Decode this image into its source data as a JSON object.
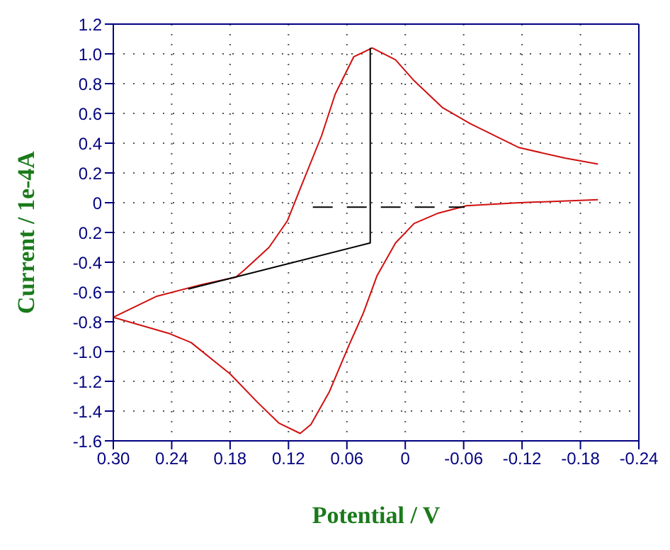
{
  "chart_data": {
    "type": "line",
    "xlabel": "Potential / V",
    "ylabel": "Current / 1e-4A",
    "xlim": [
      0.3,
      -0.24
    ],
    "xticks": [
      {
        "value": 0.3,
        "label": "0.30"
      },
      0.24,
      0.18,
      0.12,
      0.06,
      0,
      -0.06,
      -0.12,
      -0.18,
      -0.24
    ],
    "ylim": [
      -1.6,
      1.2
    ],
    "yticks": [
      -1.6,
      -1.4,
      -1.2,
      {
        "value": -1,
        "label": "-1.0"
      },
      -0.8,
      -0.6,
      -0.4,
      {
        "value": -0.2,
        "label": "0.2"
      },
      0,
      0.2,
      0.4,
      0.6,
      0.8,
      {
        "value": 1,
        "label": "1.0"
      },
      1.2
    ],
    "grid": true,
    "legend": false,
    "marker": "none",
    "series": [
      {
        "color": "#d01010",
        "line_style": "solid",
        "x": [
          0.3,
          0.242,
          0.22,
          0.18,
          0.152,
          0.13,
          0.108,
          0.097,
          0.078,
          0.058,
          0.043,
          0.029,
          0.01,
          -0.009,
          -0.034,
          -0.063,
          -0.117,
          -0.198
        ],
        "values": [
          -0.77,
          -0.88,
          -0.94,
          -1.15,
          -1.34,
          -1.48,
          -1.55,
          -1.49,
          -1.27,
          -0.96,
          -0.74,
          -0.49,
          -0.27,
          -0.14,
          -0.07,
          -0.02,
          0.0,
          0.02
        ]
      },
      {
        "color": "#d01010",
        "line_style": "solid",
        "x": [
          -0.198,
          -0.164,
          -0.117,
          -0.067,
          -0.038,
          -0.009,
          0.01,
          0.034,
          0.053,
          0.072,
          0.086,
          0.107,
          0.121,
          0.14,
          0.165,
          0.174,
          0.209,
          0.256,
          0.3
        ],
        "values": [
          0.26,
          0.3,
          0.37,
          0.53,
          0.64,
          0.82,
          0.96,
          1.04,
          0.98,
          0.73,
          0.45,
          0.11,
          -0.12,
          -0.3,
          -0.45,
          -0.5,
          -0.55,
          -0.63,
          -0.77
        ]
      },
      {
        "color": "#000000",
        "line_style": "solid",
        "x": [
          0.223,
          0.036,
          0.036
        ],
        "values": [
          -0.58,
          -0.27,
          1.04
        ]
      },
      {
        "color": "#000000",
        "line_style": "dashed",
        "x": [
          0.095,
          -0.061
        ],
        "values": [
          -0.03,
          -0.03
        ]
      }
    ]
  }
}
